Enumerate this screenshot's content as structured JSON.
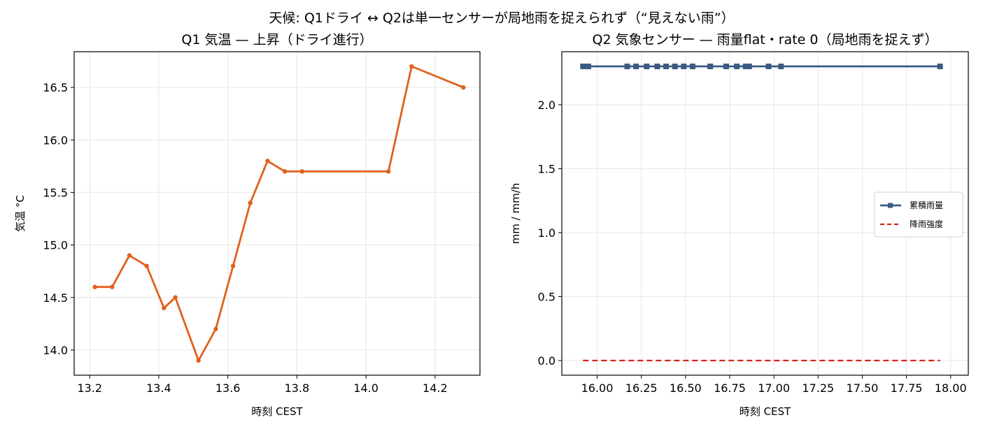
{
  "suptitle": "天候: Q1ドライ ↔ Q2は単一センサーが局地雨を捉えられず（“見えない雨”）",
  "chart_data": [
    {
      "type": "line",
      "title": "Q1 気温 — 上昇（ドライ進行）",
      "xlabel": "時刻 CEST",
      "ylabel": "気温 °C",
      "xlim": [
        13.155,
        14.33
      ],
      "ylim": [
        13.76,
        16.84
      ],
      "xticks": [
        13.2,
        13.4,
        13.6,
        13.8,
        14.0,
        14.2
      ],
      "xtick_labels": [
        "13.2",
        "13.4",
        "13.6",
        "13.8",
        "14.0",
        "14.2"
      ],
      "yticks": [
        14.0,
        14.5,
        15.0,
        15.5,
        16.0,
        16.5
      ],
      "ytick_labels": [
        "14.0",
        "14.5",
        "15.0",
        "15.5",
        "16.0",
        "16.5"
      ],
      "grid": true,
      "series": [
        {
          "color": "#e0611b",
          "marker": "circle",
          "x": [
            13.215,
            13.265,
            13.315,
            13.365,
            13.415,
            13.448,
            13.515,
            13.565,
            13.615,
            13.665,
            13.715,
            13.765,
            13.815,
            14.065,
            14.132,
            14.282
          ],
          "y": [
            14.6,
            14.6,
            14.9,
            14.8,
            14.4,
            14.5,
            13.9,
            14.2,
            14.8,
            15.4,
            15.8,
            15.7,
            15.7,
            15.7,
            16.7,
            16.5
          ]
        }
      ]
    },
    {
      "type": "line",
      "title": "Q2 気象センサー — 雨量flat・rate 0（局地雨を捉えず）",
      "xlabel": "時刻 CEST",
      "ylabel": "mm / mm/h",
      "xlim": [
        15.8,
        18.1
      ],
      "ylim": [
        -0.115,
        2.415
      ],
      "xticks": [
        16.0,
        16.25,
        16.5,
        16.75,
        17.0,
        17.25,
        17.5,
        17.75,
        18.0
      ],
      "xtick_labels": [
        "16.00",
        "16.25",
        "16.50",
        "16.75",
        "17.00",
        "17.25",
        "17.50",
        "17.75",
        "18.00"
      ],
      "yticks": [
        0.0,
        0.5,
        1.0,
        1.5,
        2.0
      ],
      "ytick_labels": [
        "0.0",
        "0.5",
        "1.0",
        "1.5",
        "2.0"
      ],
      "grid": true,
      "legend_position": "center-right",
      "series": [
        {
          "name": "累積雨量",
          "color": "#3a5a82",
          "marker": "square",
          "x": [
            15.92,
            15.95,
            16.17,
            16.22,
            16.28,
            16.34,
            16.39,
            16.44,
            16.49,
            16.54,
            16.64,
            16.73,
            16.79,
            16.84,
            16.86,
            16.97,
            17.04,
            17.94
          ],
          "y": [
            2.3,
            2.3,
            2.3,
            2.3,
            2.3,
            2.3,
            2.3,
            2.3,
            2.3,
            2.3,
            2.3,
            2.3,
            2.3,
            2.3,
            2.3,
            2.3,
            2.3,
            2.3
          ]
        },
        {
          "name": "降雨強度",
          "color": "#d62718",
          "dash": "dashed",
          "x": [
            15.92,
            17.94
          ],
          "y": [
            0.0,
            0.0
          ]
        }
      ]
    }
  ]
}
